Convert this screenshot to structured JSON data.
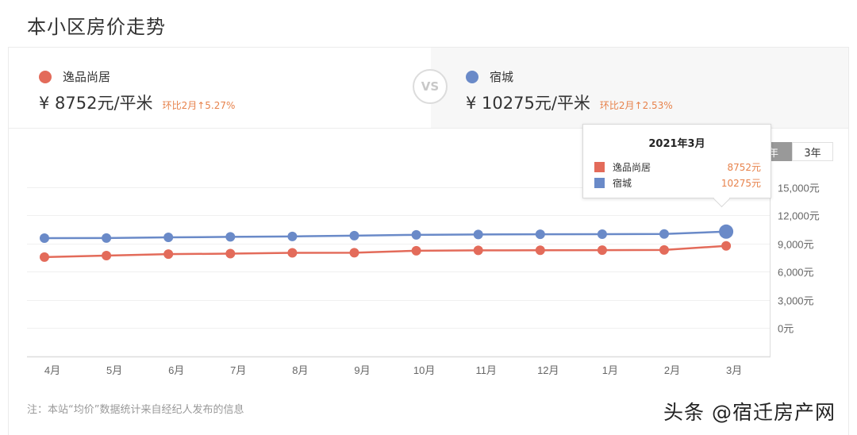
{
  "page": {
    "title": "本小区房价走势"
  },
  "compare": {
    "left": {
      "name": "逸品尚居",
      "color": "#e36b5a",
      "price": "¥ 8752元/平米",
      "change": "环比2月↑5.27%"
    },
    "vs_label": "VS",
    "right": {
      "name": "宿城",
      "color": "#6a8ac8",
      "price": "¥ 10275元/平米",
      "change": "环比2月↑2.53%"
    }
  },
  "range_tabs": [
    {
      "label": "1年",
      "active": true
    },
    {
      "label": "3年",
      "active": false
    }
  ],
  "tooltip": {
    "title": "2021年3月",
    "rows": [
      {
        "name": "逸品尚居",
        "value": "8752元",
        "color": "#e36b5a"
      },
      {
        "name": "宿城",
        "value": "10275元",
        "color": "#6a8ac8"
      }
    ]
  },
  "chart_data": {
    "type": "line",
    "title": "本小区房价走势",
    "xlabel": "",
    "ylabel": "",
    "categories": [
      "4月",
      "5月",
      "6月",
      "7月",
      "8月",
      "9月",
      "10月",
      "11月",
      "12月",
      "1月",
      "2月",
      "3月"
    ],
    "series": [
      {
        "name": "逸品尚居",
        "color": "#e36b5a",
        "values": [
          7550,
          7710,
          7870,
          7920,
          8010,
          8020,
          8230,
          8270,
          8280,
          8290,
          8314,
          8752
        ]
      },
      {
        "name": "宿城",
        "color": "#6a8ac8",
        "values": [
          9580,
          9590,
          9660,
          9710,
          9760,
          9840,
          9930,
          9970,
          9990,
          10000,
          10021,
          10275
        ]
      }
    ],
    "yticks": [
      "15,000元",
      "12,000元",
      "9,000元",
      "6,000元",
      "3,000元",
      "0元"
    ],
    "ytick_values": [
      15000,
      12000,
      9000,
      6000,
      3000,
      0
    ],
    "ylim": [
      0,
      18000
    ],
    "grid": true,
    "legend_position": "top (comparison header)",
    "highlighted_point": "3月"
  },
  "footnote": "注：本站“均价”数据统计来自经纪人发布的信息",
  "watermark": "头条 @宿迁房产网"
}
